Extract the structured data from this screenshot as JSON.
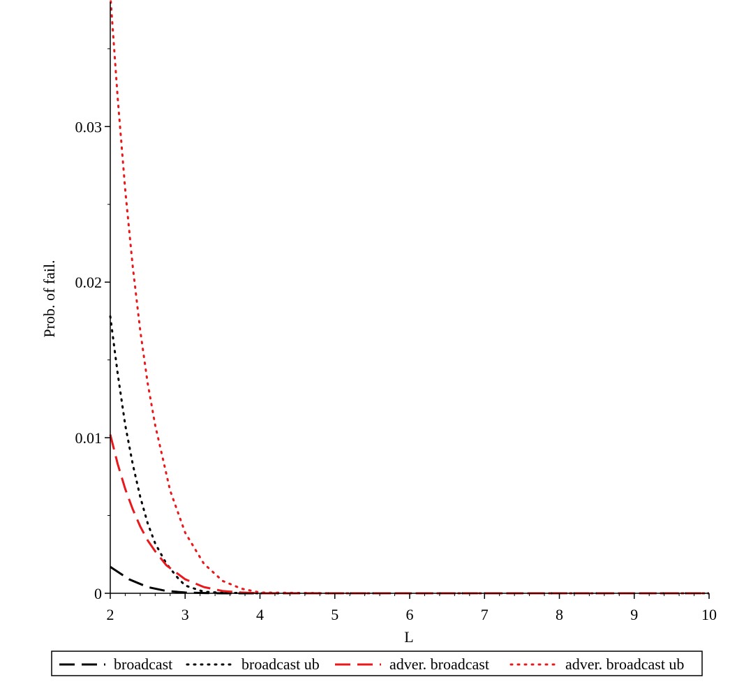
{
  "chart_data": {
    "type": "line",
    "title": "",
    "xlabel": "L",
    "ylabel": "Prob. of fail.",
    "xlim": [
      2,
      10
    ],
    "ylim": [
      0,
      0.038
    ],
    "x_ticks": [
      2,
      3,
      4,
      5,
      6,
      7,
      8,
      9,
      10
    ],
    "y_ticks": [
      0,
      0.01,
      0.02,
      0.03
    ],
    "x_tick_labels": [
      "2",
      "3",
      "4",
      "5",
      "6",
      "7",
      "8",
      "9",
      "10"
    ],
    "y_tick_labels": [
      "0",
      "0.01",
      "0.02",
      "0.03"
    ],
    "grid": false,
    "legend_position": "bottom",
    "series": [
      {
        "name": "broadcast",
        "color": "#000000",
        "style": "dashed",
        "x": [
          2.0,
          2.25,
          2.5,
          2.75,
          3.0,
          3.25,
          3.5,
          4.0,
          5.0,
          10.0
        ],
        "y": [
          0.0017,
          0.0009,
          0.0004,
          0.00015,
          5e-05,
          2e-05,
          0.0,
          0.0,
          0.0,
          0.0
        ]
      },
      {
        "name": "broadcast ub",
        "color": "#000000",
        "style": "dotted",
        "x": [
          2.0,
          2.1,
          2.2,
          2.3,
          2.4,
          2.5,
          2.6,
          2.75,
          2.9,
          3.0,
          3.25,
          3.5,
          4.0,
          5.0,
          10.0
        ],
        "y": [
          0.0178,
          0.0141,
          0.0108,
          0.0083,
          0.0062,
          0.0045,
          0.0032,
          0.0019,
          0.001,
          0.0005,
          0.0001,
          3e-05,
          0.0,
          0.0,
          0.0
        ]
      },
      {
        "name": "adver. broadcast",
        "color": "#e8191c",
        "style": "dashed",
        "x": [
          2.0,
          2.1,
          2.2,
          2.3,
          2.4,
          2.5,
          2.6,
          2.75,
          3.0,
          3.25,
          3.5,
          3.75,
          4.0,
          5.0,
          10.0
        ],
        "y": [
          0.0102,
          0.0083,
          0.0067,
          0.0054,
          0.0043,
          0.0034,
          0.0027,
          0.0018,
          0.0009,
          0.0004,
          0.00015,
          5e-05,
          0.0,
          0.0,
          0.0
        ]
      },
      {
        "name": "adver. broadcast ub",
        "color": "#e8191c",
        "style": "dotted",
        "x": [
          2.0,
          2.1,
          2.2,
          2.3,
          2.4,
          2.5,
          2.6,
          2.8,
          3.0,
          3.25,
          3.5,
          3.75,
          4.0,
          5.0,
          10.0
        ],
        "y": [
          0.0385,
          0.0318,
          0.0259,
          0.021,
          0.0169,
          0.0135,
          0.0108,
          0.0066,
          0.0039,
          0.0019,
          0.0008,
          0.0003,
          5e-05,
          0.0,
          0.0
        ]
      }
    ]
  }
}
